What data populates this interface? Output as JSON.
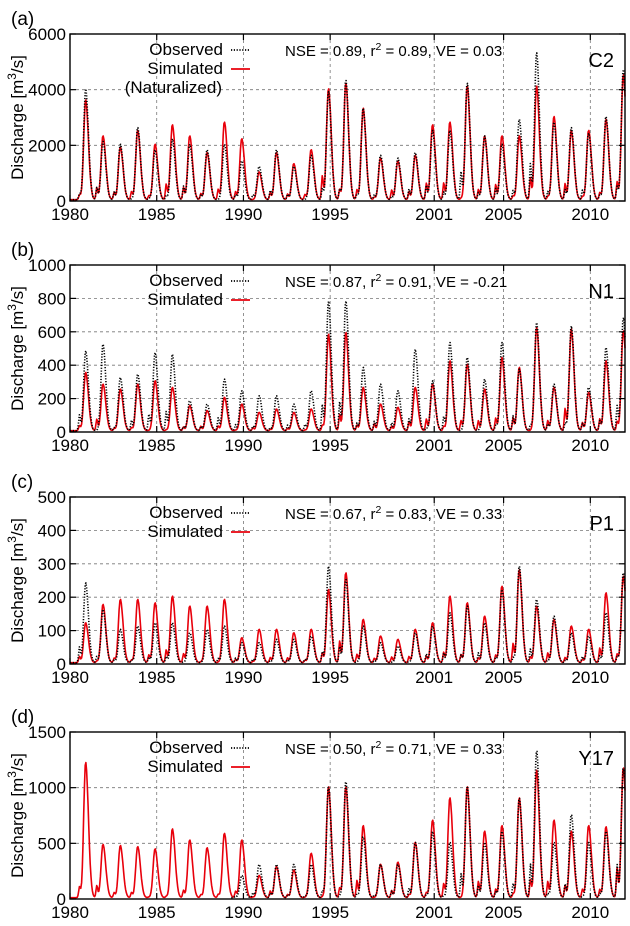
{
  "figure": {
    "x_axis_ticks": [
      "1980",
      "1985",
      "1990",
      "1995",
      "2001",
      "2005",
      "2010"
    ],
    "x_tick_years": [
      1980,
      1985,
      1990,
      1995,
      2001,
      2005,
      2010
    ],
    "x_range": [
      1980,
      2012
    ],
    "ylabel": "Discharge [m³/s]",
    "colors": {
      "observed": "#000000",
      "simulated": "#e8000b",
      "grid": "#777777"
    }
  },
  "chart_data": [
    {
      "type": "line",
      "panel_label": "(a)",
      "station": "C2",
      "stats": "NSE = 0.89, r² = 0.89, VE = 0.03",
      "ylabel": "Discharge [m³/s]",
      "ylim": [
        0,
        6000
      ],
      "yticks": [
        0,
        2000,
        4000,
        6000
      ],
      "grid": true,
      "legend": {
        "position": "top-left",
        "extra_note": "(Naturalized)"
      },
      "series": [
        {
          "name": "Observed",
          "style": "dotted",
          "color": "#000000",
          "x": [
            1980.9,
            1981.9,
            1982.9,
            1983.9,
            1984.9,
            1985.9,
            1986.9,
            1987.9,
            1988.9,
            1989.9,
            1990.9,
            1991.9,
            1992.9,
            1993.9,
            1994.9,
            1995.9,
            1996.9,
            1997.9,
            1998.9,
            1999.9,
            2000.9,
            2001.9,
            2002.9,
            2003.9,
            2004.9,
            2005.9,
            2006.9,
            2007.9,
            2008.9,
            2009.9,
            2010.9,
            2011.9
          ],
          "peaks": [
            4000,
            2100,
            2000,
            2600,
            1800,
            2200,
            2000,
            1800,
            2000,
            1400,
            1200,
            1800,
            1200,
            1600,
            3900,
            4300,
            3300,
            1600,
            1500,
            1700,
            2500,
            2500,
            4200,
            2300,
            2000,
            2900,
            5300,
            2800,
            2600,
            2400,
            3000,
            4700
          ]
        },
        {
          "name": "Simulated",
          "style": "solid",
          "color": "#e8000b",
          "x": [
            1980.9,
            1981.9,
            1982.9,
            1983.9,
            1984.9,
            1985.9,
            1986.9,
            1987.9,
            1988.9,
            1989.9,
            1990.9,
            1991.9,
            1992.9,
            1993.9,
            1994.9,
            1995.9,
            1996.9,
            1997.9,
            1998.9,
            1999.9,
            2000.9,
            2001.9,
            2002.9,
            2003.9,
            2004.9,
            2005.9,
            2006.9,
            2007.9,
            2008.9,
            2009.9,
            2010.9,
            2011.9
          ],
          "peaks": [
            3600,
            2300,
            1900,
            2500,
            2000,
            2700,
            2300,
            1700,
            2800,
            2200,
            1000,
            1700,
            1300,
            1800,
            4000,
            4200,
            3300,
            1500,
            1400,
            1600,
            2700,
            2800,
            4100,
            2300,
            2300,
            2300,
            4100,
            3000,
            2500,
            2500,
            2900,
            4500
          ]
        }
      ]
    },
    {
      "type": "line",
      "panel_label": "(b)",
      "station": "N1",
      "stats": "NSE = 0.87, r² = 0.91, VE = -0.21",
      "ylabel": "Discharge [m³/s]",
      "ylim": [
        0,
        1000
      ],
      "yticks": [
        0,
        200,
        400,
        600,
        800,
        1000
      ],
      "grid": true,
      "legend": {
        "position": "top-left"
      },
      "series": [
        {
          "name": "Observed",
          "style": "dotted",
          "color": "#000000",
          "x": [
            1980.9,
            1981.9,
            1982.9,
            1983.9,
            1984.9,
            1985.9,
            1986.9,
            1987.9,
            1988.9,
            1989.9,
            1990.9,
            1991.9,
            1992.9,
            1993.9,
            1994.9,
            1995.9,
            1996.9,
            1997.9,
            1998.9,
            1999.9,
            2000.9,
            2001.9,
            2002.9,
            2003.9,
            2004.9,
            2005.9,
            2006.9,
            2007.9,
            2008.9,
            2009.9,
            2010.9,
            2011.9
          ],
          "peaks": [
            480,
            520,
            320,
            340,
            470,
            460,
            180,
            160,
            310,
            240,
            210,
            210,
            160,
            240,
            780,
            780,
            380,
            280,
            240,
            490,
            300,
            530,
            440,
            310,
            530,
            370,
            650,
            280,
            630,
            260,
            500,
            680
          ]
        },
        {
          "name": "Simulated",
          "style": "solid",
          "color": "#e8000b",
          "x": [
            1980.9,
            1981.9,
            1982.9,
            1983.9,
            1984.9,
            1985.9,
            1986.9,
            1987.9,
            1988.9,
            1989.9,
            1990.9,
            1991.9,
            1992.9,
            1993.9,
            1994.9,
            1995.9,
            1996.9,
            1997.9,
            1998.9,
            1999.9,
            2000.9,
            2001.9,
            2002.9,
            2003.9,
            2004.9,
            2005.9,
            2006.9,
            2007.9,
            2008.9,
            2009.9,
            2010.9,
            2011.9
          ],
          "peaks": [
            350,
            280,
            250,
            280,
            300,
            260,
            150,
            120,
            200,
            160,
            110,
            130,
            110,
            130,
            580,
            590,
            260,
            160,
            140,
            260,
            280,
            420,
            400,
            250,
            440,
            380,
            620,
            260,
            610,
            230,
            420,
            600
          ]
        }
      ]
    },
    {
      "type": "line",
      "panel_label": "(c)",
      "station": "P1",
      "stats": "NSE = 0.67, r² = 0.83, VE = 0.33",
      "ylabel": "Discharge [m³/s]",
      "ylim": [
        0,
        500
      ],
      "yticks": [
        0,
        100,
        200,
        300,
        400,
        500
      ],
      "grid": true,
      "legend": {
        "position": "top-left"
      },
      "series": [
        {
          "name": "Observed",
          "style": "dotted",
          "color": "#000000",
          "x": [
            1980.9,
            1981.9,
            1982.9,
            1983.9,
            1984.9,
            1985.9,
            1986.9,
            1987.9,
            1988.9,
            1989.9,
            1990.9,
            1991.9,
            1992.9,
            1993.9,
            1994.9,
            1995.9,
            1996.9,
            1997.9,
            1998.9,
            1999.9,
            2000.9,
            2001.9,
            2002.9,
            2003.9,
            2004.9,
            2005.9,
            2006.9,
            2007.9,
            2008.9,
            2009.9,
            2010.9,
            2011.9
          ],
          "peaks": [
            240,
            160,
            100,
            110,
            120,
            120,
            90,
            100,
            110,
            60,
            60,
            70,
            70,
            80,
            290,
            250,
            110,
            60,
            50,
            90,
            110,
            150,
            170,
            120,
            220,
            290,
            190,
            140,
            90,
            80,
            150,
            270
          ]
        },
        {
          "name": "Simulated",
          "style": "solid",
          "color": "#e8000b",
          "x": [
            1980.9,
            1981.9,
            1982.9,
            1983.9,
            1984.9,
            1985.9,
            1986.9,
            1987.9,
            1988.9,
            1989.9,
            1990.9,
            1991.9,
            1992.9,
            1993.9,
            1994.9,
            1995.9,
            1996.9,
            1997.9,
            1998.9,
            1999.9,
            2000.9,
            2001.9,
            2002.9,
            2003.9,
            2004.9,
            2005.9,
            2006.9,
            2007.9,
            2008.9,
            2009.9,
            2010.9,
            2011.9
          ],
          "peaks": [
            120,
            175,
            190,
            190,
            180,
            200,
            170,
            170,
            190,
            75,
            100,
            100,
            90,
            100,
            220,
            270,
            130,
            80,
            70,
            100,
            120,
            200,
            180,
            140,
            230,
            280,
            170,
            130,
            110,
            100,
            210,
            260
          ]
        }
      ]
    },
    {
      "type": "line",
      "panel_label": "(d)",
      "station": "Y17",
      "stats": "NSE = 0.50, r² = 0.71, VE = 0.33",
      "ylabel": "Discharge [m³/s]",
      "ylim": [
        0,
        1500
      ],
      "yticks": [
        0,
        500,
        1000,
        1500
      ],
      "grid": true,
      "legend": {
        "position": "top-left"
      },
      "series": [
        {
          "name": "Observed",
          "style": "dotted",
          "color": "#000000",
          "x": [
            1989.9,
            1990.9,
            1991.9,
            1992.9,
            1993.9,
            1994.9,
            1995.9,
            1996.9,
            1997.9,
            1998.9,
            1999.9,
            2000.9,
            2001.9,
            2002.9,
            2003.9,
            2004.9,
            2005.9,
            2006.9,
            2007.9,
            2008.9,
            2009.9,
            2010.9,
            2011.9
          ],
          "peaks": [
            200,
            300,
            300,
            300,
            300,
            1000,
            1050,
            550,
            300,
            300,
            500,
            600,
            500,
            1000,
            500,
            600,
            900,
            1330,
            500,
            750,
            500,
            600,
            1170
          ]
        },
        {
          "name": "Simulated",
          "style": "solid",
          "color": "#e8000b",
          "x": [
            1980.9,
            1981.9,
            1982.9,
            1983.9,
            1984.9,
            1985.9,
            1986.9,
            1987.9,
            1988.9,
            1989.9,
            1990.9,
            1991.9,
            1992.9,
            1993.9,
            1994.9,
            1995.9,
            1996.9,
            1997.9,
            1998.9,
            1999.9,
            2000.9,
            2001.9,
            2002.9,
            2003.9,
            2004.9,
            2005.9,
            2006.9,
            2007.9,
            2008.9,
            2009.9,
            2010.9,
            2011.9
          ],
          "peaks": [
            1220,
            480,
            470,
            460,
            440,
            620,
            520,
            450,
            580,
            520,
            200,
            280,
            250,
            400,
            1000,
            1000,
            650,
            300,
            320,
            500,
            700,
            900,
            1000,
            600,
            650,
            900,
            1150,
            700,
            600,
            650,
            640,
            1170
          ]
        }
      ]
    }
  ]
}
